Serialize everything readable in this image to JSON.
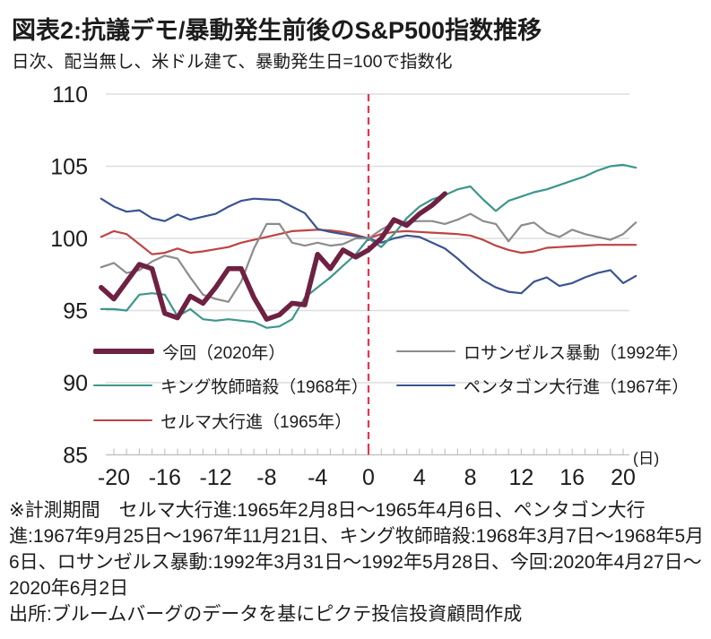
{
  "header": {
    "title": "図表2:抗議デモ/暴動発生前後のS&P500指数推移",
    "subtitle": "日次、配当無し、米ドル建て、暴動発生日=100で指数化"
  },
  "chart_data": {
    "type": "line",
    "title": "抗議デモ/暴動発生前後のS&P500指数推移",
    "xlabel": "(日)",
    "ylabel": "",
    "x_start_day": -21,
    "x_ticks": [
      -20,
      -16,
      -12,
      -8,
      -4,
      0,
      4,
      8,
      12,
      16,
      20
    ],
    "y_ticks": [
      85,
      90,
      95,
      100,
      105,
      110
    ],
    "ylim": [
      85,
      110
    ],
    "grid": true,
    "event_line": {
      "x": 0,
      "style": "dashed",
      "color": "#e8354a"
    },
    "index_base_note": "暴動発生日=100",
    "series": [
      {
        "name": "今回（2020年）",
        "color": "#6e2142",
        "width": 5.5,
        "values": [
          96.6,
          95.8,
          97.0,
          98.2,
          97.9,
          94.8,
          94.5,
          96.0,
          95.5,
          96.6,
          97.9,
          97.9,
          95.9,
          94.4,
          94.7,
          95.5,
          95.4,
          98.9,
          97.9,
          99.2,
          98.7,
          99.2,
          100.0,
          101.3,
          100.9,
          101.7,
          102.3,
          103.1
        ]
      },
      {
        "name": "ロサンゼルス暴動（1992年）",
        "color": "#8c8c8c",
        "width": 2.2,
        "values": [
          98.0,
          98.3,
          97.6,
          97.8,
          98.4,
          98.8,
          98.6,
          97.3,
          96.1,
          95.8,
          95.6,
          97.0,
          99.3,
          101.0,
          101.0,
          99.7,
          99.5,
          99.7,
          99.5,
          99.6,
          100.0,
          100.0,
          100.6,
          101.1,
          101.15,
          101.2,
          101.2,
          101.0,
          101.3,
          101.7,
          101.2,
          101.0,
          99.8,
          100.9,
          101.1,
          100.4,
          100.1,
          100.6,
          100.3,
          100.1,
          99.9,
          100.3,
          101.1
        ]
      },
      {
        "name": "キング牧師暗殺（1968年）",
        "color": "#3d968b",
        "width": 2.2,
        "values": [
          95.1,
          95.1,
          95.0,
          96.1,
          96.2,
          96.1,
          94.6,
          95.1,
          94.4,
          94.3,
          94.4,
          94.3,
          94.2,
          93.8,
          93.9,
          94.4,
          95.9,
          96.6,
          97.3,
          98.1,
          98.9,
          100.0,
          99.4,
          100.3,
          101.4,
          102.2,
          102.7,
          103.0,
          103.4,
          103.6,
          102.7,
          101.9,
          102.6,
          102.9,
          103.2,
          103.4,
          103.7,
          104.0,
          104.3,
          104.7,
          105.0,
          105.1,
          104.9
        ]
      },
      {
        "name": "ペンタゴン大行進（1967年）",
        "color": "#3a5390",
        "width": 2.2,
        "values": [
          102.75,
          102.2,
          101.85,
          101.95,
          101.4,
          101.2,
          101.65,
          101.3,
          101.5,
          101.7,
          102.2,
          102.6,
          102.75,
          102.7,
          102.65,
          102.2,
          101.75,
          100.65,
          100.45,
          100.3,
          100.15,
          100.0,
          99.7,
          100.0,
          100.2,
          100.1,
          99.7,
          99.3,
          98.6,
          97.8,
          97.1,
          96.6,
          96.3,
          96.2,
          97.0,
          97.3,
          96.7,
          96.9,
          97.3,
          97.6,
          97.8,
          96.9,
          97.4
        ]
      },
      {
        "name": "セルマ大行進（1965年）",
        "color": "#bf4343",
        "width": 2.2,
        "values": [
          100.1,
          100.5,
          100.3,
          99.6,
          98.9,
          99.0,
          99.3,
          99.0,
          99.1,
          99.25,
          99.4,
          99.7,
          99.9,
          100.1,
          100.3,
          100.5,
          100.55,
          100.6,
          100.55,
          100.45,
          100.25,
          100.0,
          100.3,
          100.45,
          100.5,
          100.45,
          100.4,
          100.35,
          100.3,
          100.2,
          99.9,
          99.5,
          99.2,
          99.0,
          99.1,
          99.35,
          99.4,
          99.45,
          99.5,
          99.55,
          99.55,
          99.55,
          99.55
        ]
      }
    ],
    "colors": {
      "grid": "#dedede",
      "axis": "#c4c4c4",
      "text": "#1c1c1c"
    }
  },
  "footnote": "※計測期間　セルマ大行進:1965年2月8日～1965年4月6日、ペンタゴン大行進:1967年9月25日～1967年11月21日、キング牧師暗殺:1968年3月7日～1968年5月6日、ロサンゼルス暴動:1992年3月31日～1992年5月28日、今回:2020年4月27日～2020年6月2日",
  "source": "出所:ブルームバーグのデータを基にピクテ投信投資顧問作成"
}
